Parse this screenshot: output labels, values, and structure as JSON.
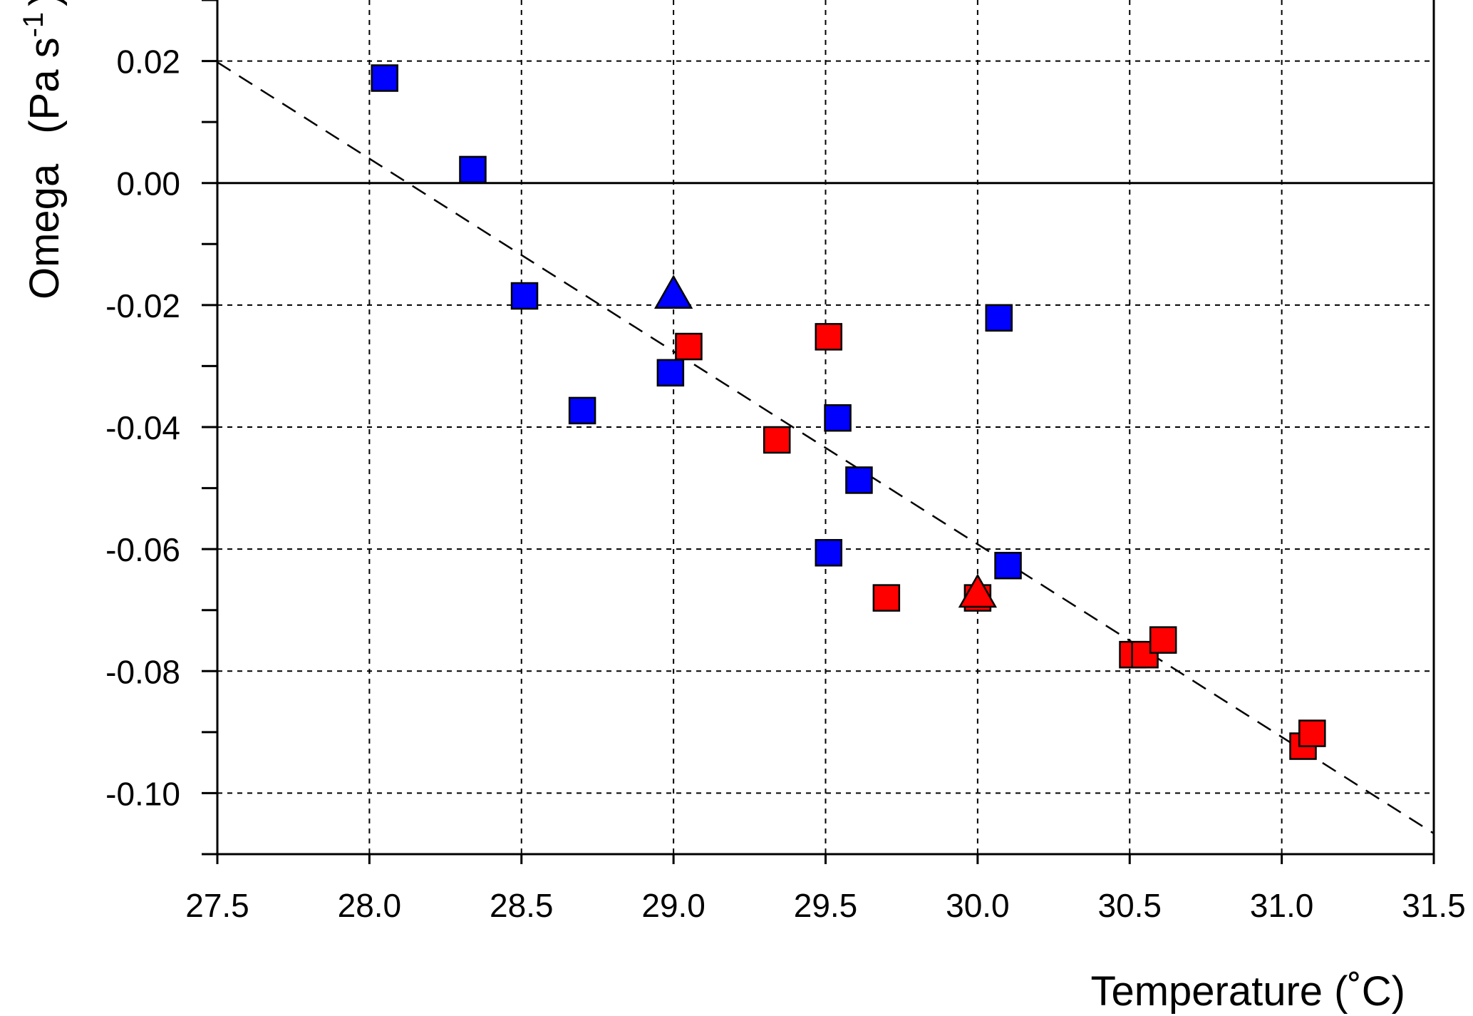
{
  "chart_data": {
    "type": "scatter",
    "xlabel": "Temperature (˚C)",
    "ylabel": "Omega",
    "ylabel_unit": "(Pa s",
    "ylabel_unit_sup": "-1",
    "ylabel_unit_close": ")",
    "xlim": [
      27.5,
      31.5
    ],
    "ylim": [
      -0.11,
      0.03
    ],
    "x_ticks": [
      {
        "value": 27.5,
        "label": "27.5"
      },
      {
        "value": 28.0,
        "label": "28.0"
      },
      {
        "value": 28.5,
        "label": "28.5"
      },
      {
        "value": 29.0,
        "label": "29.0"
      },
      {
        "value": 29.5,
        "label": "29.5"
      },
      {
        "value": 30.0,
        "label": "30.0"
      },
      {
        "value": 30.5,
        "label": "30.5"
      },
      {
        "value": 31.0,
        "label": "31.0"
      },
      {
        "value": 31.5,
        "label": "31.5"
      }
    ],
    "y_ticks": [
      {
        "value": 0.02,
        "label": "0.02"
      },
      {
        "value": 0.0,
        "label": "0.00"
      },
      {
        "value": -0.02,
        "label": "-0.02"
      },
      {
        "value": -0.04,
        "label": "-0.04"
      },
      {
        "value": -0.06,
        "label": "-0.06"
      },
      {
        "value": -0.08,
        "label": "-0.08"
      },
      {
        "value": -0.1,
        "label": "-0.10"
      }
    ],
    "y_minor_ticks": [
      0.03,
      0.01,
      -0.01,
      -0.03,
      -0.05,
      -0.07,
      -0.09,
      -0.11
    ],
    "grid": true,
    "zero_line": true,
    "series": [
      {
        "color": "#0000ff",
        "marker": "square",
        "points": [
          {
            "x": 28.05,
            "y": 0.0172
          },
          {
            "x": 28.34,
            "y": 0.0022
          },
          {
            "x": 28.51,
            "y": -0.0185
          },
          {
            "x": 28.7,
            "y": -0.0373
          },
          {
            "x": 28.99,
            "y": -0.0311
          },
          {
            "x": 29.54,
            "y": -0.0385
          },
          {
            "x": 29.61,
            "y": -0.0487
          },
          {
            "x": 29.51,
            "y": -0.0606
          },
          {
            "x": 30.07,
            "y": -0.0221
          },
          {
            "x": 30.1,
            "y": -0.0627
          }
        ]
      },
      {
        "color": "#ff0000",
        "marker": "square",
        "points": [
          {
            "x": 29.05,
            "y": -0.0268
          },
          {
            "x": 29.51,
            "y": -0.0252
          },
          {
            "x": 29.34,
            "y": -0.0421
          },
          {
            "x": 29.7,
            "y": -0.068
          },
          {
            "x": 30.0,
            "y": -0.068
          },
          {
            "x": 30.51,
            "y": -0.0773
          },
          {
            "x": 30.55,
            "y": -0.0773
          },
          {
            "x": 30.61,
            "y": -0.0749
          },
          {
            "x": 31.07,
            "y": -0.0923
          },
          {
            "x": 31.1,
            "y": -0.0902
          }
        ]
      },
      {
        "color": "#0000ff",
        "marker": "triangle",
        "points": [
          {
            "x": 29.0,
            "y": -0.0185
          }
        ]
      },
      {
        "color": "#ff0000",
        "marker": "triangle",
        "points": [
          {
            "x": 30.0,
            "y": -0.0675
          }
        ]
      }
    ],
    "fit_line": {
      "style": "dashed",
      "points": [
        {
          "x": 27.5,
          "y": 0.0198
        },
        {
          "x": 31.5,
          "y": -0.1066
        }
      ]
    }
  }
}
